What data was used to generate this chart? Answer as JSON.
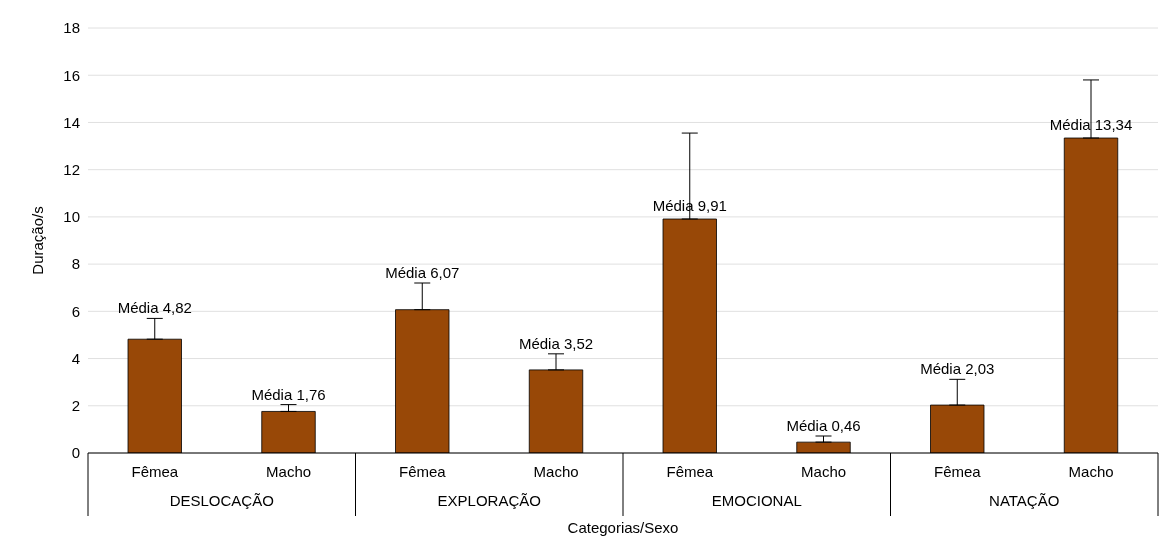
{
  "chart_data": {
    "type": "bar",
    "xlabel": "Categorias/Sexo",
    "ylabel": "Duração/s",
    "categories": [
      "Fêmea",
      "Macho",
      "Fêmea",
      "Macho",
      "Fêmea",
      "Macho",
      "Fêmea",
      "Macho"
    ],
    "values": [
      4.82,
      1.76,
      6.07,
      3.52,
      9.91,
      0.46,
      2.03,
      13.34
    ],
    "errors": [
      [
        4.82,
        5.7
      ],
      [
        1.76,
        2.05
      ],
      [
        6.07,
        7.2
      ],
      [
        3.52,
        4.2
      ],
      [
        9.91,
        13.55
      ],
      [
        0.46,
        0.72
      ],
      [
        2.03,
        3.12
      ],
      [
        13.34,
        15.8
      ]
    ],
    "value_labels": [
      "Média 4,82",
      "Média 1,76",
      "Média 6,07",
      "Média 3,52",
      "Média 9,91",
      "Média 0,46",
      "Média 2,03",
      "Média 13,34"
    ],
    "color": "#984807",
    "annotations": [
      "DESLOCAÇÃO",
      "EXPLORAÇÃO",
      "EMOCIONAL",
      "NATAÇÃO"
    ],
    "ylim": [
      0,
      18
    ],
    "yticks": [
      0,
      2,
      4,
      6,
      8,
      10,
      12,
      14,
      16,
      18
    ],
    "grid": "y"
  }
}
